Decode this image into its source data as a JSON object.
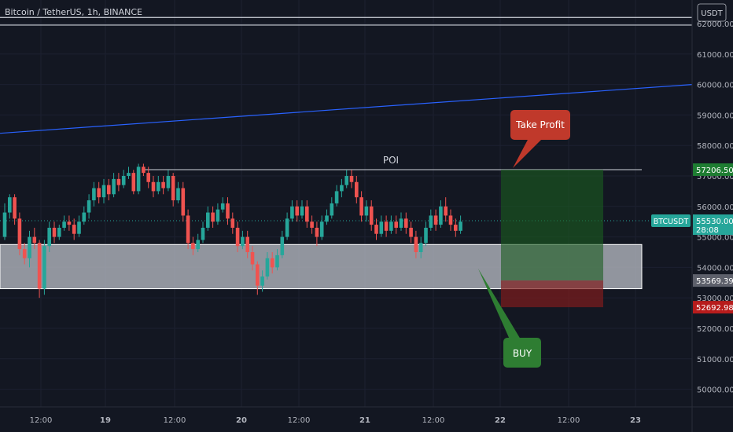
{
  "title": "Bitcoin / TetherUS, 1h, BINANCE",
  "price_scale": {
    "currency": "USDT",
    "current_symbol": "BTCUSDT",
    "current_price": "55530.00",
    "countdown": "28:08",
    "target_price": "57206.50",
    "entry_price": "53569.39",
    "stop_price": "52692.98"
  },
  "annotations": {
    "poi_label": "POI",
    "take_profit_label": "Take Profit",
    "buy_label": "BUY"
  },
  "colors": {
    "background": "#131722",
    "bull": "#26a69a",
    "bear": "#ef5350",
    "trendline": "#2962ff",
    "zone": "#b2b5be",
    "profit": "#1b5e20",
    "loss": "#7f1d1d",
    "tp_callout": "#c0392b",
    "buy_callout": "#2e7d32"
  },
  "chart_data": {
    "type": "candlestick",
    "y_ticks": [
      "62000.00",
      "61000.00",
      "60000.00",
      "59000.00",
      "58000.00",
      "57000.00",
      "56000.00",
      "55000.00",
      "54000.00",
      "53000.00",
      "52000.00",
      "51000.00",
      "50000.00"
    ],
    "x_ticks": [
      "12:00",
      "19",
      "12:00",
      "20",
      "12:00",
      "21",
      "12:00",
      "22",
      "12:00",
      "23"
    ],
    "ylim": [
      49500,
      62500
    ],
    "levels": {
      "resistance_top": 62200,
      "resistance_bottom": 61950,
      "poi": 57206.5,
      "zone_top": 54750,
      "zone_bottom": 53300,
      "current": 55530,
      "entry": 53569.39,
      "target": 57206.5,
      "stop": 52692.98
    },
    "trendline": {
      "start": 58400,
      "end": 60000
    },
    "candles": [
      [
        55000,
        55800,
        56100,
        54900
      ],
      [
        55800,
        56300,
        56400,
        55600
      ],
      [
        56300,
        55600,
        56400,
        55400
      ],
      [
        55600,
        54600,
        55800,
        54400
      ],
      [
        54600,
        54300,
        54800,
        54100
      ],
      [
        54300,
        55000,
        55200,
        54000
      ],
      [
        55000,
        54800,
        55300,
        54600
      ],
      [
        54800,
        53300,
        54900,
        53000
      ],
      [
        53300,
        54700,
        54900,
        53100
      ],
      [
        54700,
        55300,
        55500,
        54500
      ],
      [
        55300,
        55000,
        55500,
        54800
      ],
      [
        55000,
        55300,
        55400,
        54900
      ],
      [
        55300,
        55500,
        55700,
        55200
      ],
      [
        55500,
        55400,
        55700,
        55200
      ],
      [
        55400,
        55100,
        55600,
        54900
      ],
      [
        55100,
        55500,
        55700,
        55000
      ],
      [
        55500,
        55800,
        56000,
        55400
      ],
      [
        55800,
        56200,
        56400,
        55600
      ],
      [
        56200,
        56600,
        56800,
        56000
      ],
      [
        56600,
        56300,
        56800,
        56100
      ],
      [
        56300,
        56700,
        56900,
        56100
      ],
      [
        56700,
        56400,
        56900,
        56200
      ],
      [
        56400,
        56900,
        57100,
        56300
      ],
      [
        56900,
        56700,
        57100,
        56500
      ],
      [
        56700,
        57000,
        57200,
        56600
      ],
      [
        57000,
        57100,
        57300,
        56900
      ],
      [
        57100,
        56500,
        57200,
        56400
      ],
      [
        56500,
        57300,
        57400,
        56400
      ],
      [
        57300,
        57100,
        57400,
        57000
      ],
      [
        57100,
        56800,
        57300,
        56600
      ],
      [
        56800,
        56500,
        57000,
        56300
      ],
      [
        56500,
        56800,
        57000,
        56400
      ],
      [
        56800,
        56600,
        57000,
        56400
      ],
      [
        56600,
        57000,
        57200,
        56500
      ],
      [
        57000,
        56200,
        57100,
        56000
      ],
      [
        56200,
        56600,
        56800,
        56100
      ],
      [
        56600,
        55700,
        56800,
        55500
      ],
      [
        55700,
        54800,
        55900,
        54600
      ],
      [
        54800,
        54600,
        55000,
        54400
      ],
      [
        54600,
        54900,
        55100,
        54500
      ],
      [
        54900,
        55300,
        55500,
        54800
      ],
      [
        55300,
        55800,
        56000,
        55200
      ],
      [
        55800,
        55500,
        56000,
        55300
      ],
      [
        55500,
        55900,
        56100,
        55400
      ],
      [
        55900,
        56100,
        56300,
        55800
      ],
      [
        56100,
        55600,
        56300,
        55400
      ],
      [
        55600,
        55300,
        55800,
        55100
      ],
      [
        55300,
        54700,
        55500,
        54500
      ],
      [
        54700,
        55000,
        55200,
        54600
      ],
      [
        55000,
        54500,
        55200,
        54300
      ],
      [
        54500,
        54100,
        54700,
        53900
      ],
      [
        54100,
        53400,
        54200,
        53100
      ],
      [
        53400,
        53700,
        53900,
        53200
      ],
      [
        53700,
        54300,
        54500,
        53600
      ],
      [
        54300,
        54000,
        54500,
        53800
      ],
      [
        54000,
        54400,
        54600,
        53900
      ],
      [
        54400,
        55000,
        55200,
        54300
      ],
      [
        55000,
        55600,
        55800,
        54900
      ],
      [
        55600,
        56000,
        56200,
        55500
      ],
      [
        56000,
        55700,
        56200,
        55500
      ],
      [
        55700,
        56000,
        56200,
        55600
      ],
      [
        56000,
        55500,
        56200,
        55300
      ],
      [
        55500,
        55300,
        55700,
        55100
      ],
      [
        55300,
        55000,
        55500,
        54700
      ],
      [
        55000,
        55500,
        55700,
        54900
      ],
      [
        55500,
        55700,
        55900,
        55400
      ],
      [
        55700,
        56100,
        56300,
        55600
      ],
      [
        56100,
        56500,
        56700,
        56000
      ],
      [
        56500,
        56700,
        56900,
        56300
      ],
      [
        56700,
        57000,
        57200,
        56600
      ],
      [
        57000,
        56800,
        57200,
        56600
      ],
      [
        56800,
        56300,
        57000,
        56100
      ],
      [
        56300,
        55700,
        56500,
        55500
      ],
      [
        55700,
        56000,
        56200,
        55500
      ],
      [
        56000,
        55400,
        56200,
        55200
      ],
      [
        55400,
        55100,
        55600,
        54900
      ],
      [
        55100,
        55500,
        55700,
        55000
      ],
      [
        55500,
        55200,
        55700,
        55000
      ],
      [
        55200,
        55500,
        55700,
        55100
      ],
      [
        55500,
        55300,
        55700,
        55100
      ],
      [
        55300,
        55600,
        55800,
        55200
      ],
      [
        55600,
        55300,
        55800,
        55100
      ],
      [
        55300,
        55000,
        55500,
        54800
      ],
      [
        55000,
        54500,
        55200,
        54300
      ],
      [
        54500,
        54800,
        55000,
        54300
      ],
      [
        54800,
        55300,
        55500,
        54700
      ],
      [
        55300,
        55700,
        55900,
        55200
      ],
      [
        55700,
        55400,
        55900,
        55200
      ],
      [
        55400,
        56000,
        56200,
        55300
      ],
      [
        56000,
        55700,
        56300,
        55500
      ],
      [
        55700,
        55400,
        55900,
        55200
      ],
      [
        55400,
        55200,
        55600,
        55000
      ],
      [
        55200,
        55500,
        55700,
        55100
      ]
    ]
  }
}
